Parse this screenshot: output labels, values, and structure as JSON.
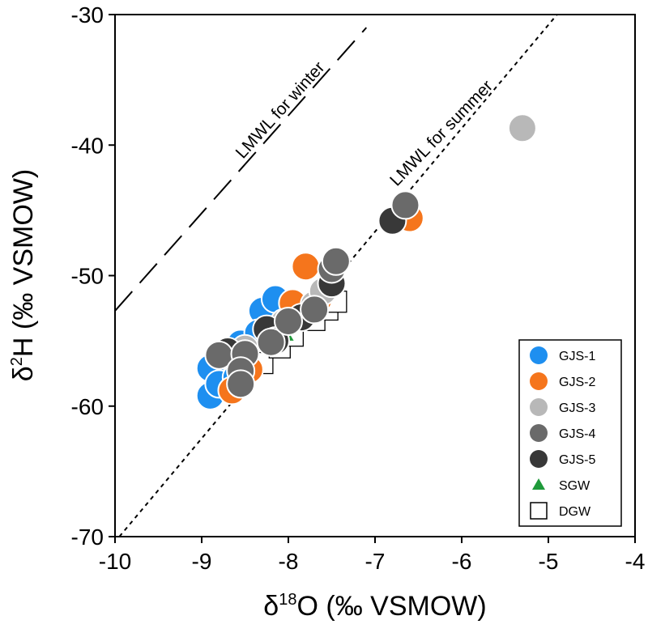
{
  "chart_data": {
    "type": "scatter",
    "xlabel": {
      "prefix": "δ",
      "sup": "18",
      "suffix": "O (‰ VSMOW)"
    },
    "ylabel": {
      "prefix": "δ",
      "sup": "2",
      "suffix": "H (‰ VSMOW)"
    },
    "xlim": [
      -10,
      -4
    ],
    "ylim": [
      -70,
      -30
    ],
    "xticks": [
      -10,
      -9,
      -8,
      -7,
      -6,
      -5,
      -4
    ],
    "yticks": [
      -70,
      -60,
      -50,
      -40,
      -30
    ],
    "grid": false,
    "legend_position": "bottom-right",
    "lines": [
      {
        "name": "LMWL for winter",
        "style": "long-dash",
        "points": [
          [
            -10,
            -52.7
          ],
          [
            -7.1,
            -31
          ]
        ]
      },
      {
        "name": "LMWL for summer",
        "style": "short-dash",
        "points": [
          [
            -9.95,
            -70
          ],
          [
            -4.9,
            -30
          ]
        ]
      }
    ],
    "series": [
      {
        "name": "GJS-1",
        "color": "#1e8ff0",
        "marker": "circle",
        "points": [
          [
            -8.9,
            -59.2
          ],
          [
            -8.9,
            -57.1
          ],
          [
            -8.8,
            -58.3
          ],
          [
            -8.55,
            -55.2
          ],
          [
            -8.3,
            -52.7
          ],
          [
            -8.15,
            -51.8
          ],
          [
            -8.35,
            -54.4
          ],
          [
            -8.6,
            -57.8
          ]
        ]
      },
      {
        "name": "GJS-2",
        "color": "#f5751c",
        "marker": "circle",
        "points": [
          [
            -8.65,
            -58.8
          ],
          [
            -7.8,
            -49.3
          ],
          [
            -7.95,
            -52.1
          ],
          [
            -7.65,
            -51.8
          ],
          [
            -6.6,
            -45.6
          ],
          [
            -8.45,
            -57.2
          ]
        ]
      },
      {
        "name": "GJS-3",
        "color": "#b8b8b8",
        "marker": "circle",
        "points": [
          [
            -5.3,
            -38.7
          ],
          [
            -7.7,
            -52.2
          ],
          [
            -8.5,
            -55.6
          ],
          [
            -7.6,
            -51.2
          ],
          [
            -8.05,
            -53.6
          ]
        ]
      },
      {
        "name": "GJS-4",
        "color": "#6a6a6a",
        "marker": "circle",
        "points": [
          [
            -8.8,
            -56.1
          ],
          [
            -8.5,
            -56.0
          ],
          [
            -8.55,
            -57.3
          ],
          [
            -8.55,
            -58.3
          ],
          [
            -8.2,
            -55.1
          ],
          [
            -8.0,
            -53.5
          ],
          [
            -7.7,
            -52.6
          ],
          [
            -7.5,
            -49.5
          ],
          [
            -7.45,
            -48.9
          ],
          [
            -6.65,
            -44.6
          ]
        ]
      },
      {
        "name": "GJS-5",
        "color": "#383838",
        "marker": "circle",
        "points": [
          [
            -8.7,
            -55.8
          ],
          [
            -8.25,
            -54.1
          ],
          [
            -7.85,
            -53.2
          ],
          [
            -7.5,
            -50.6
          ],
          [
            -6.8,
            -45.8
          ],
          [
            -8.15,
            -55.0
          ]
        ]
      },
      {
        "name": "SGW",
        "color": "#1f9a3a",
        "marker": "triangle",
        "points": [
          [
            -8.0,
            -54.7
          ],
          [
            -8.3,
            -55.4
          ]
        ]
      },
      {
        "name": "DGW",
        "color": "#000000",
        "marker": "square",
        "points": [
          [
            -8.65,
            -58.2
          ],
          [
            -8.45,
            -57.0
          ],
          [
            -8.3,
            -56.7
          ],
          [
            -8.1,
            -55.5
          ],
          [
            -7.95,
            -54.6
          ],
          [
            -7.7,
            -53.4
          ],
          [
            -7.55,
            -52.6
          ],
          [
            -7.45,
            -52.0
          ],
          [
            -8.5,
            -55.4
          ],
          [
            -8.2,
            -54.2
          ]
        ]
      }
    ]
  }
}
